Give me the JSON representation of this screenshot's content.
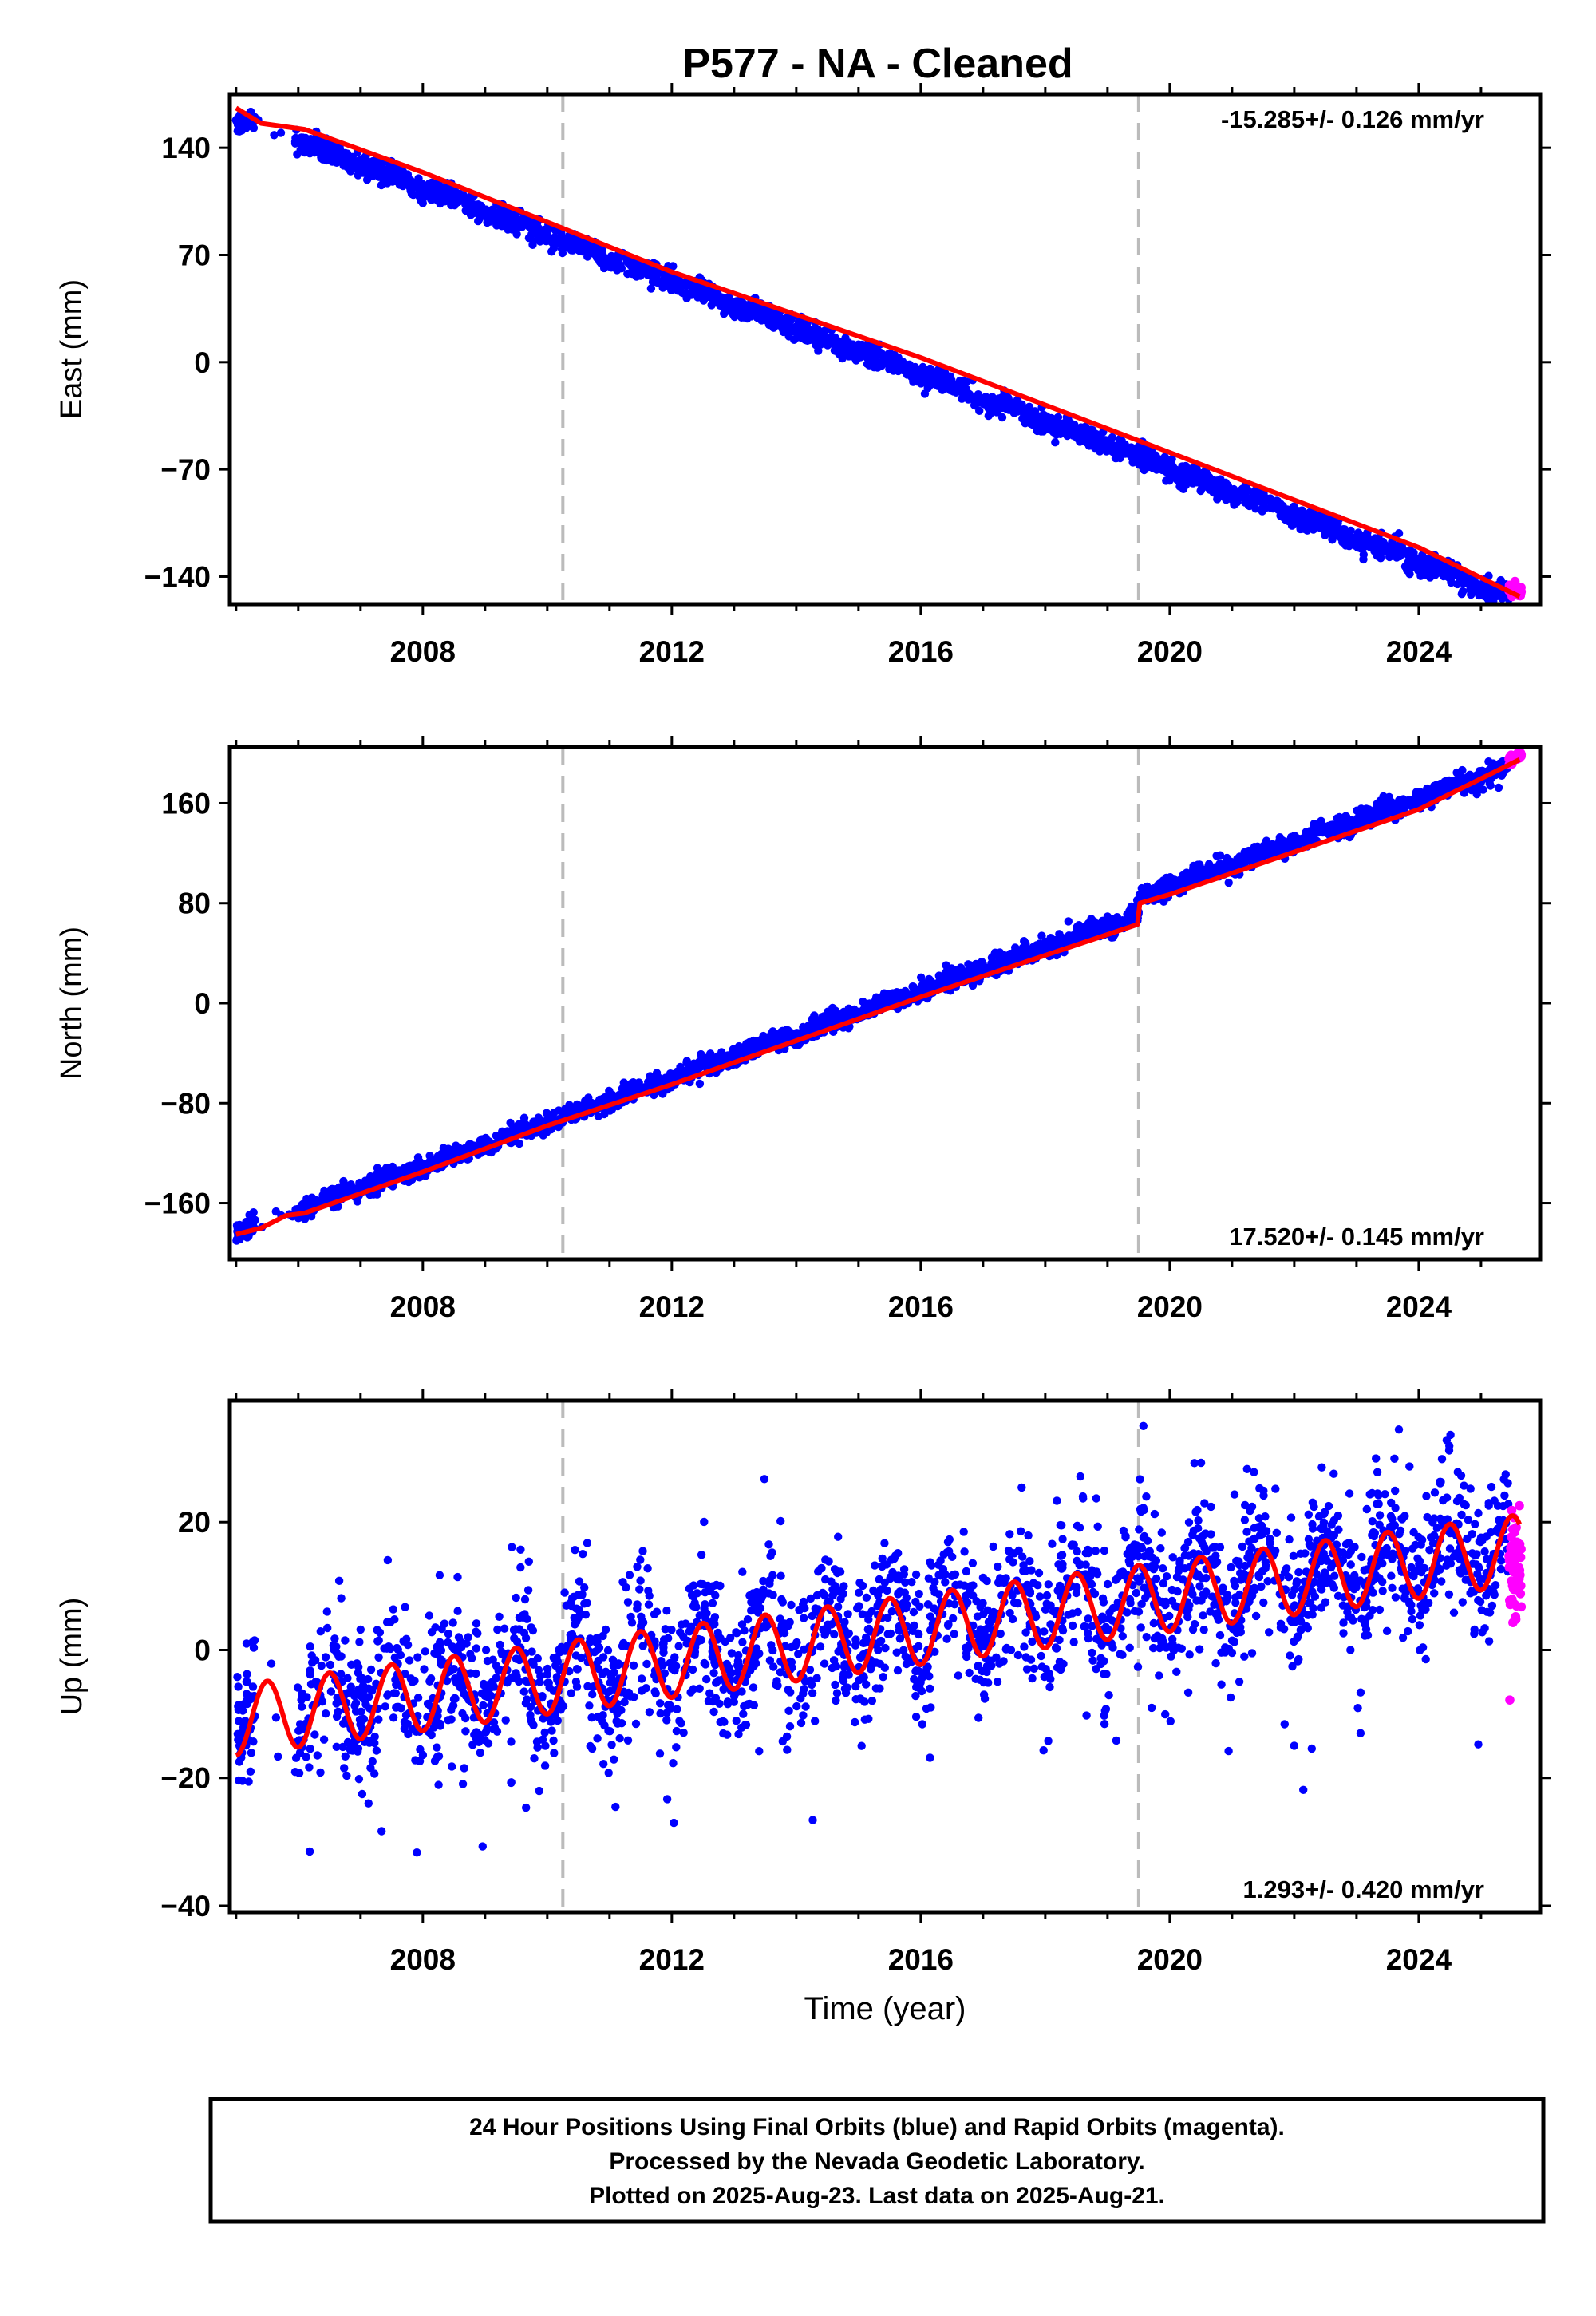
{
  "title": "P577  - NA - Cleaned",
  "colors": {
    "final": "#0000ff",
    "rapid": "#ff00ff",
    "model": "#ff0000",
    "event": "#bbbbbb",
    "frame": "#000000"
  },
  "chart_data": [
    {
      "type": "scatter",
      "component": "east",
      "ylabel": "East (mm)",
      "xlabel": "",
      "xlim": [
        2004.9,
        2025.95
      ],
      "ylim": [
        -158,
        175
      ],
      "yticks": [
        -140,
        -70,
        0,
        70,
        140
      ],
      "xticks": [
        2008,
        2012,
        2016,
        2020,
        2024
      ],
      "rate_label": "-15.285+/- 0.126 mm/yr",
      "rate_position": "top-right",
      "event_lines": [
        2010.25,
        2019.5
      ],
      "series": [
        {
          "name": "Final Orbits",
          "color": "#0000ff",
          "x_range": [
            2005.0,
            2025.45
          ],
          "y_start": 160,
          "rate": -15.285,
          "y_noise": 3.5,
          "annual_amp": 1.5
        },
        {
          "name": "Rapid Orbits",
          "color": "#ff00ff",
          "x_range": [
            2025.45,
            2025.65
          ],
          "y_start": -148,
          "rate": -15.285,
          "y_noise": 2
        }
      ],
      "model": {
        "color": "#ff0000",
        "points": [
          [
            2005.0,
            166
          ],
          [
            2005.4,
            156
          ],
          [
            2006.1,
            152
          ],
          [
            2008.0,
            124
          ],
          [
            2012.0,
            59
          ],
          [
            2016.0,
            3
          ],
          [
            2020.0,
            -59
          ],
          [
            2024.0,
            -121
          ],
          [
            2025.62,
            -153
          ]
        ]
      }
    },
    {
      "type": "scatter",
      "component": "north",
      "ylabel": "North (mm)",
      "xlabel": "",
      "xlim": [
        2004.9,
        2025.95
      ],
      "ylim": [
        -205,
        205
      ],
      "yticks": [
        -160,
        -80,
        0,
        80,
        160
      ],
      "xticks": [
        2008,
        2012,
        2016,
        2020,
        2024
      ],
      "rate_label": "17.520+/- 0.145 mm/yr",
      "rate_position": "bottom-right",
      "event_lines": [
        2010.25,
        2019.5
      ],
      "series": [
        {
          "name": "Final Orbits",
          "color": "#0000ff",
          "x_range": [
            2005.0,
            2025.45
          ],
          "y_start": -183,
          "rate": 17.52,
          "y_noise": 4,
          "annual_amp": 1.5
        },
        {
          "name": "Rapid Orbits",
          "color": "#ff00ff",
          "x_range": [
            2025.45,
            2025.65
          ],
          "y_start": 195,
          "rate": 17.52,
          "y_noise": 2
        }
      ],
      "model": {
        "color": "#ff0000",
        "points": [
          [
            2005.0,
            -185
          ],
          [
            2005.4,
            -180
          ],
          [
            2005.8,
            -170
          ],
          [
            2006.1,
            -168
          ],
          [
            2008.0,
            -135
          ],
          [
            2010.0,
            -98
          ],
          [
            2012.0,
            -65
          ],
          [
            2016.0,
            5
          ],
          [
            2019.48,
            63
          ],
          [
            2019.52,
            80
          ],
          [
            2020.0,
            87
          ],
          [
            2024.0,
            155
          ],
          [
            2025.62,
            195
          ]
        ]
      }
    },
    {
      "type": "scatter",
      "component": "up",
      "ylabel": "Up (mm)",
      "xlabel": "Time (year)",
      "xlim": [
        2004.9,
        2025.95
      ],
      "ylim": [
        -41,
        39
      ],
      "yticks": [
        -40,
        -20,
        0,
        20
      ],
      "xticks": [
        2008,
        2012,
        2016,
        2020,
        2024
      ],
      "rate_label": "1.293+/- 0.420 mm/yr",
      "rate_position": "bottom-right",
      "event_lines": [
        2010.25,
        2019.5
      ],
      "series": [
        {
          "name": "Final Orbits",
          "color": "#0000ff",
          "x_range": [
            2005.0,
            2025.45
          ],
          "y_start": -10,
          "rate": 1.293,
          "y_noise": 5.5,
          "annual_amp": 5
        },
        {
          "name": "Rapid Orbits",
          "color": "#ff00ff",
          "x_range": [
            2025.45,
            2025.65
          ],
          "y_start": 12,
          "rate": 1.293,
          "y_noise": 4
        }
      ],
      "model": {
        "color": "#ff0000",
        "offset": -11,
        "rate": 1.293,
        "annual_amp": 5.5,
        "x_range": [
          2005.0,
          2025.62
        ]
      }
    }
  ],
  "footer": {
    "line1": "24 Hour Positions Using Final Orbits (blue) and Rapid Orbits (magenta).",
    "line2": "Processed by the Nevada Geodetic Laboratory.",
    "line3": "Plotted on 2025-Aug-23. Last data on 2025-Aug-21."
  }
}
